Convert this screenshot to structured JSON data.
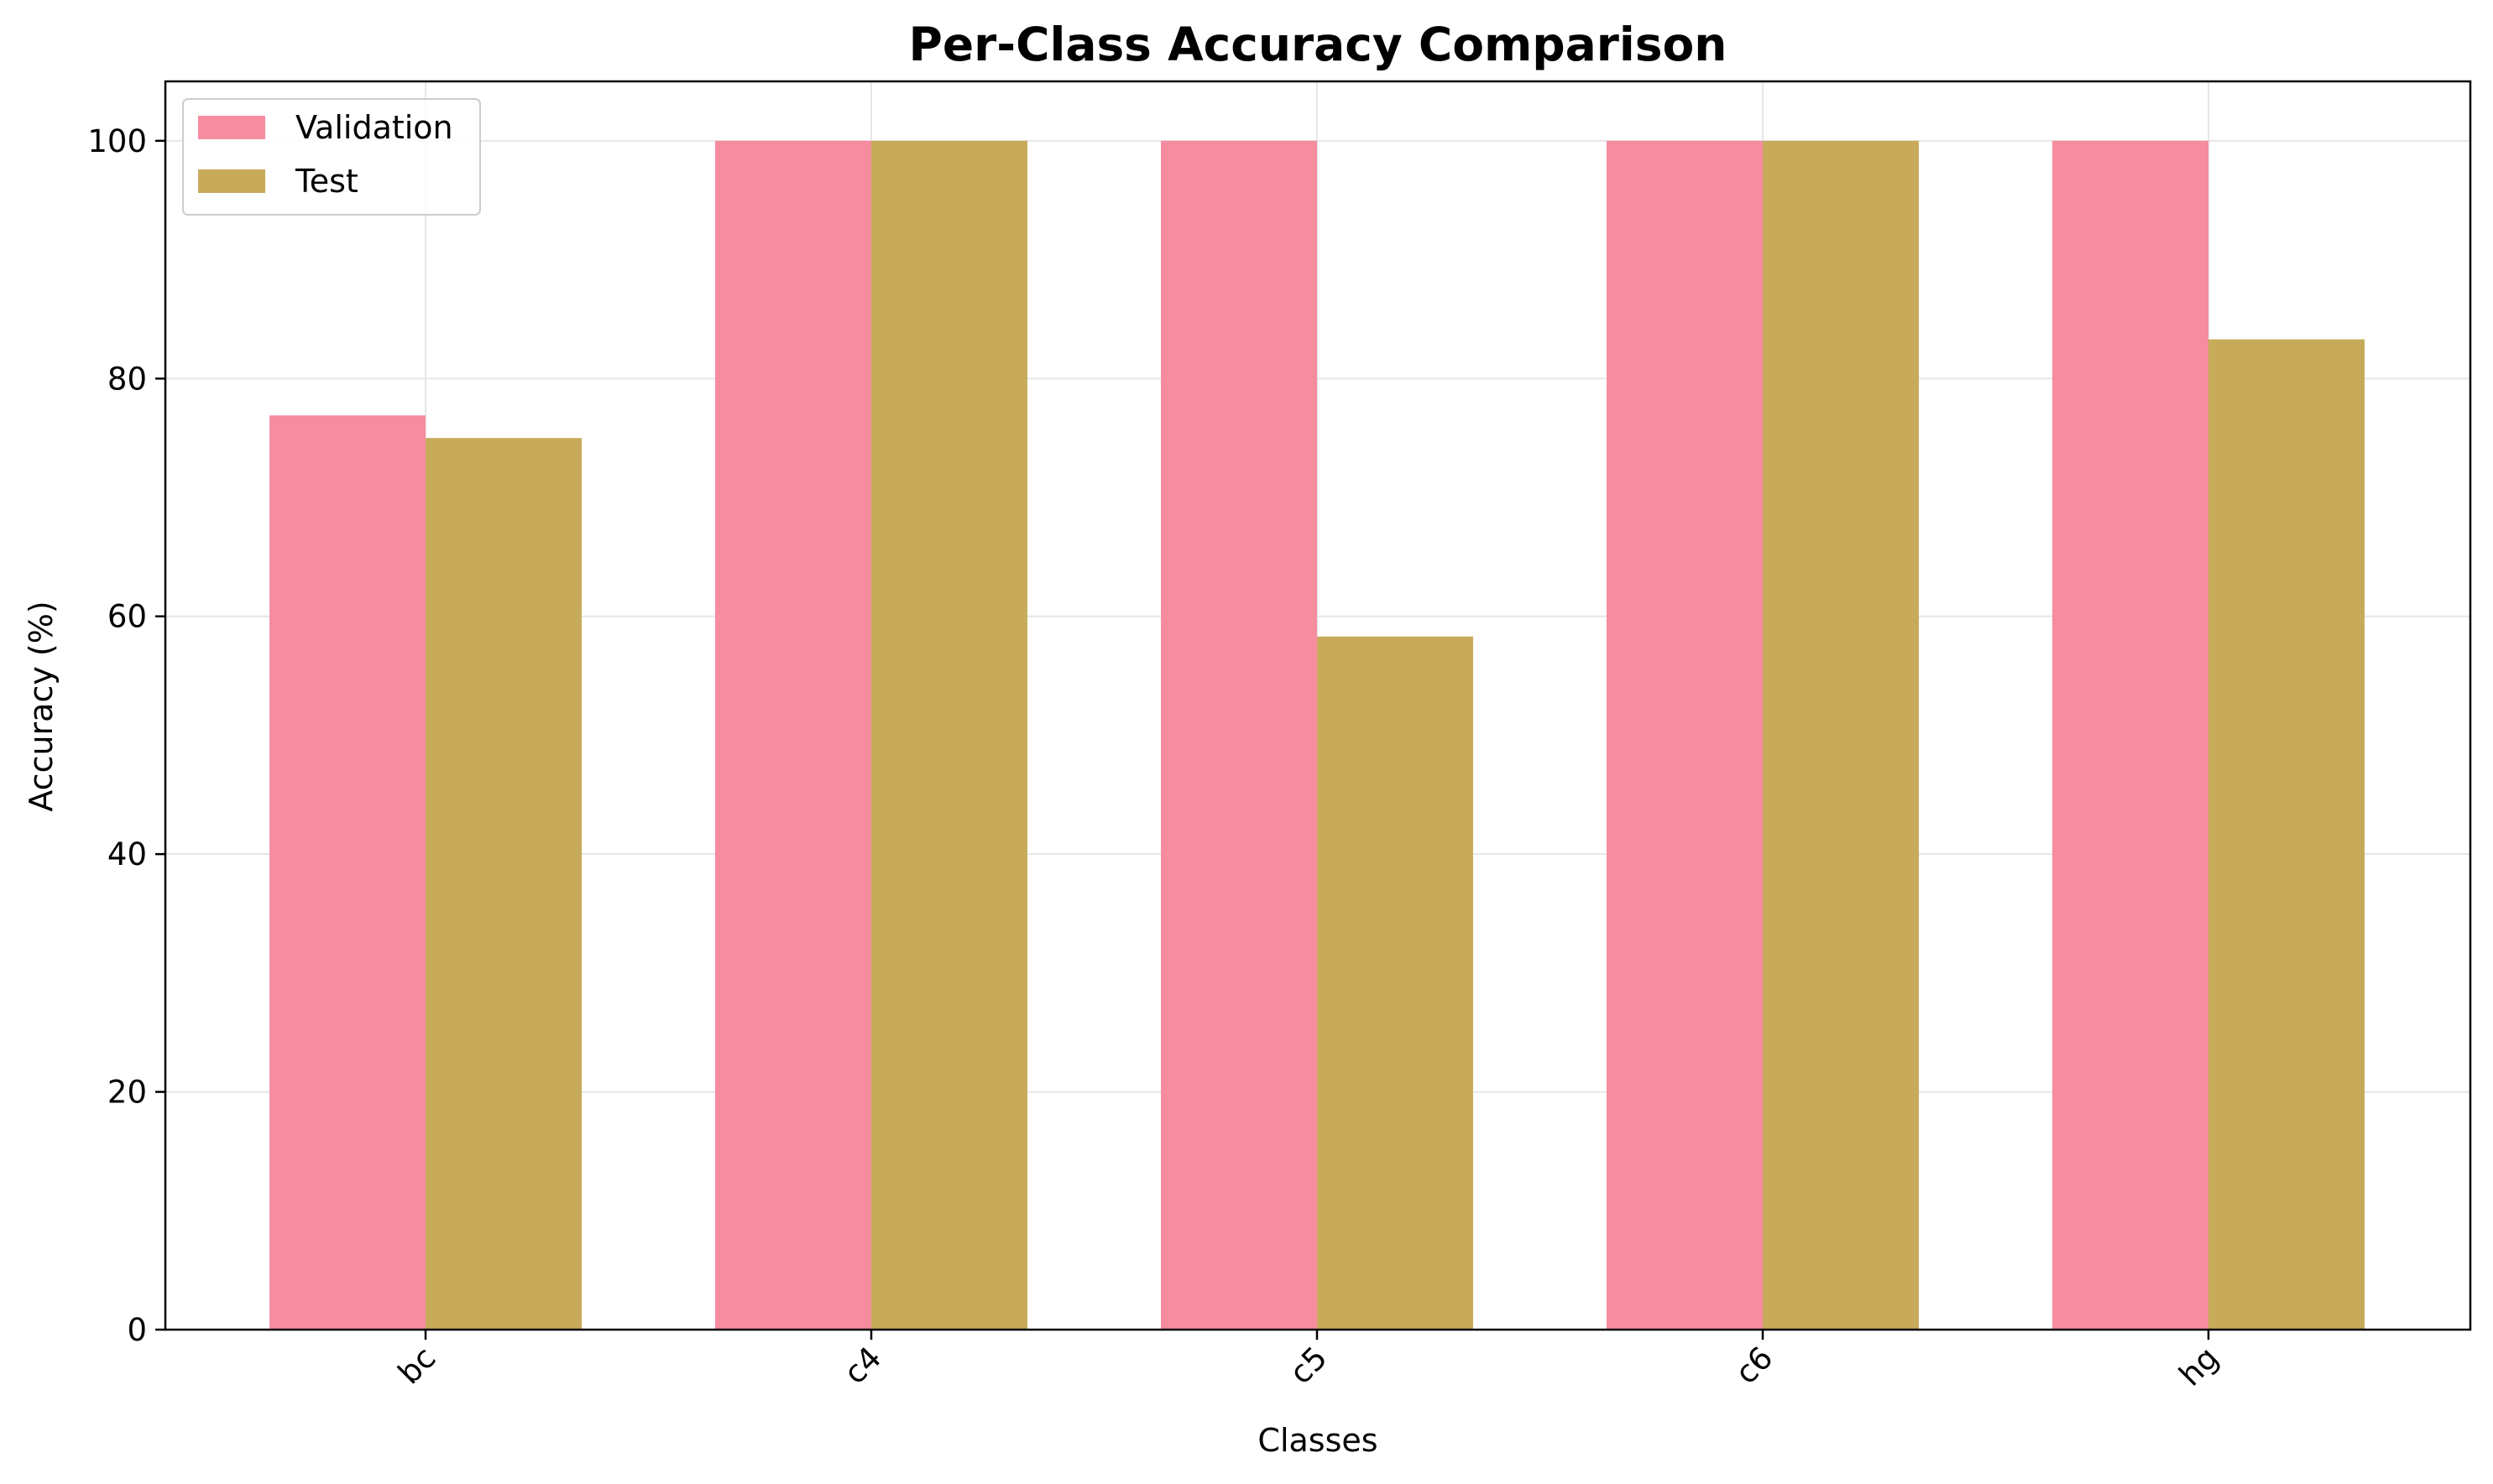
{
  "chart_data": {
    "type": "bar",
    "title": "Per-Class Accuracy Comparison",
    "xlabel": "Classes",
    "ylabel": "Accuracy (%)",
    "categories": [
      "bc",
      "c4",
      "c5",
      "c6",
      "hg"
    ],
    "series": [
      {
        "name": "Validation",
        "color": "#f68ca0",
        "values": [
          76.9,
          100,
          100,
          100,
          100
        ]
      },
      {
        "name": "Test",
        "color": "#c7ab5b",
        "values": [
          75.0,
          100,
          58.3,
          100,
          83.3
        ]
      }
    ],
    "ylim": [
      0,
      105
    ],
    "yticks": [
      0,
      20,
      40,
      60,
      80,
      100
    ],
    "grid": true,
    "legend": "upper-left"
  }
}
